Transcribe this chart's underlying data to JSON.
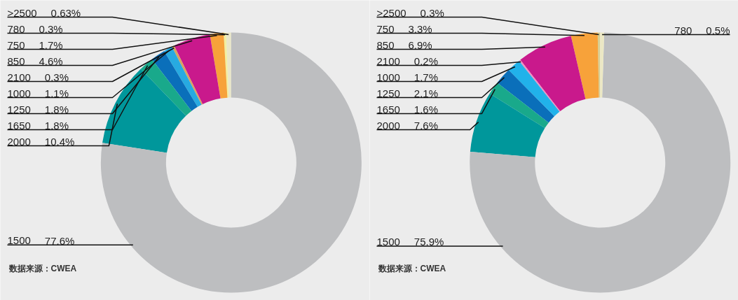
{
  "chart_data": [
    {
      "type": "donut",
      "categories": [
        ">2500",
        "780",
        "750",
        "850",
        "2100",
        "1000",
        "1250",
        "1650",
        "2000",
        "1500"
      ],
      "values": [
        0.63,
        0.3,
        1.7,
        4.6,
        0.3,
        1.1,
        1.8,
        1.8,
        10.4,
        77.6
      ],
      "value_labels": [
        "0.63%",
        "0.3%",
        "1.7%",
        "4.6%",
        "0.3%",
        "1.1%",
        "1.8%",
        "1.8%",
        "10.4%",
        "77.6%"
      ],
      "colors": [
        "#e9e6c9",
        "#f3ef9e",
        "#f7a23a",
        "#c9198c",
        "#d9a25e",
        "#27aae1",
        "#0a6fba",
        "#19a98b",
        "#00979b",
        "#bdbec0"
      ],
      "annotations": [
        "数据来源：CWEA"
      ]
    },
    {
      "type": "donut",
      "categories": [
        ">2500",
        "750",
        "850",
        "2100",
        "1000",
        "1250",
        "1650",
        "2000",
        "1500",
        "780"
      ],
      "values": [
        0.3,
        3.3,
        6.9,
        0.2,
        1.7,
        2.1,
        1.6,
        7.6,
        75.9,
        0.5
      ],
      "value_labels": [
        "0.3%",
        "3.3%",
        "6.9%",
        "0.2%",
        "1.7%",
        "2.1%",
        "1.6%",
        "7.6%",
        "75.9%",
        "0.5%"
      ],
      "colors": [
        "#d6cf94",
        "#f7a23a",
        "#c9198c",
        "#ee8fc2",
        "#21b2ea",
        "#0a6fba",
        "#19a98b",
        "#00979b",
        "#bdbec0",
        "#ece8c4"
      ],
      "annotations": [
        "数据来源：CWEA"
      ]
    }
  ]
}
